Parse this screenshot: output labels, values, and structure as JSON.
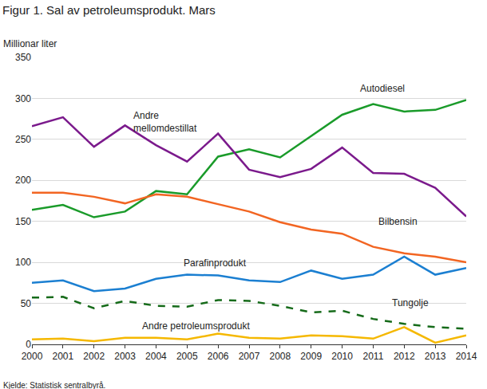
{
  "chart_data": {
    "type": "line",
    "title": "Figur 1. Sal av petroleumsprodukt. Mars",
    "ylabel": "Millionar liter",
    "source": "Kjelde: Statistisk sentralbyrå.",
    "x": [
      2000,
      2001,
      2002,
      2003,
      2004,
      2005,
      2006,
      2007,
      2008,
      2009,
      2010,
      2011,
      2012,
      2013,
      2014
    ],
    "xlim": [
      2000,
      2014
    ],
    "xticks": [
      2000,
      2001,
      2002,
      2003,
      2004,
      2005,
      2006,
      2007,
      2008,
      2009,
      2010,
      2011,
      2012,
      2013,
      2014
    ],
    "ylim": [
      0,
      350
    ],
    "yticks": [
      0,
      50,
      100,
      150,
      200,
      250,
      300,
      350
    ],
    "grid": true,
    "series": [
      {
        "name": "Autodiesel",
        "color": "#1a9b2a",
        "line_style": "solid",
        "values": [
          164,
          170,
          155,
          162,
          187,
          183,
          229,
          238,
          228,
          254,
          280,
          293,
          284,
          286,
          298
        ]
      },
      {
        "name": "Andre mellomdestillat",
        "color": "#7b1a8c",
        "line_style": "solid",
        "values": [
          266,
          277,
          241,
          267,
          243,
          223,
          257,
          213,
          204,
          214,
          240,
          209,
          208,
          191,
          156
        ]
      },
      {
        "name": "Bilbensin",
        "color": "#f26522",
        "line_style": "solid",
        "values": [
          185,
          185,
          180,
          172,
          183,
          180,
          171,
          162,
          149,
          140,
          135,
          119,
          111,
          107,
          100
        ]
      },
      {
        "name": "Parafinprodukt",
        "color": "#1b7fd1",
        "line_style": "solid",
        "values": [
          75,
          78,
          65,
          68,
          80,
          85,
          84,
          78,
          76,
          90,
          80,
          85,
          107,
          85,
          93
        ]
      },
      {
        "name": "Tungolje",
        "color": "#166b1a",
        "line_style": "dashed",
        "values": [
          57,
          58,
          44,
          53,
          47,
          46,
          54,
          53,
          47,
          39,
          41,
          31,
          25,
          21,
          19
        ]
      },
      {
        "name": "Andre petroleumsprodukt",
        "color": "#f5b800",
        "line_style": "solid",
        "values": [
          6,
          7,
          4,
          8,
          8,
          6,
          13,
          8,
          7,
          11,
          10,
          7,
          21,
          2,
          11
        ]
      }
    ]
  }
}
